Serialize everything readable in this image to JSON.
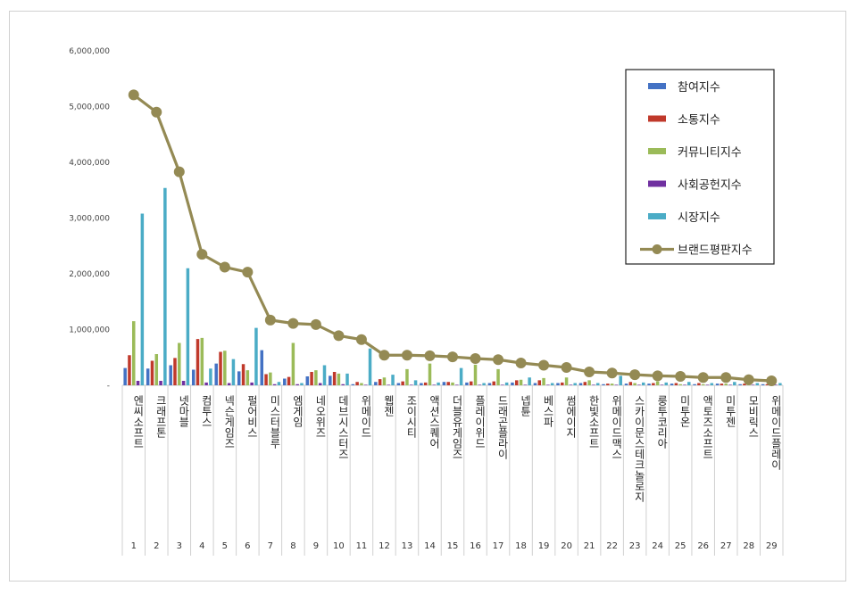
{
  "chart_data": {
    "type": "bar",
    "ylim": [
      0,
      6000000
    ],
    "y_ticks": [
      "-",
      "1,000,000",
      "2,000,000",
      "3,000,000",
      "4,000,000",
      "5,000,000",
      "6,000,000"
    ],
    "grid": false,
    "legend_position": "right",
    "category_numbers": [
      "1",
      "2",
      "3",
      "4",
      "5",
      "6",
      "7",
      "8",
      "9",
      "10",
      "11",
      "12",
      "13",
      "14",
      "15",
      "16",
      "17",
      "18",
      "19",
      "20",
      "21",
      "22",
      "23",
      "24",
      "25",
      "26",
      "27",
      "28",
      "29"
    ],
    "categories": [
      "엔씨소프트",
      "크래프톤",
      "넷마블",
      "컴투스",
      "넥슨게임즈",
      "펄어비스",
      "미스터블루",
      "엠게임",
      "네오위즈",
      "데브시스터즈",
      "위메이드",
      "웹젠",
      "조이시티",
      "액션스퀘어",
      "더블유게임즈",
      "플레이위드",
      "드래곤플라이",
      "넵튠",
      "베스파",
      "썸에이지",
      "한빛소프트",
      "위메이드맥스",
      "스카이문스테크놀로지",
      "룽투코리아",
      "미투온",
      "액토즈소프트",
      "미투젠",
      "모비릭스",
      "위메이드플레이"
    ],
    "series": [
      {
        "name": "참여지수",
        "kind": "bar",
        "color": "#4472c4",
        "values": [
          310000,
          300000,
          360000,
          280000,
          390000,
          250000,
          630000,
          120000,
          160000,
          170000,
          20000,
          60000,
          40000,
          40000,
          60000,
          50000,
          40000,
          50000,
          40000,
          40000,
          40000,
          20000,
          30000,
          30000,
          30000,
          20000,
          30000,
          20000,
          20000
        ]
      },
      {
        "name": "소통지수",
        "kind": "bar",
        "color": "#c0392b",
        "values": [
          540000,
          440000,
          490000,
          830000,
          600000,
          380000,
          200000,
          150000,
          240000,
          240000,
          60000,
          110000,
          70000,
          50000,
          60000,
          70000,
          70000,
          90000,
          90000,
          50000,
          60000,
          30000,
          60000,
          40000,
          40000,
          40000,
          30000,
          30000,
          20000
        ]
      },
      {
        "name": "커뮤니티지수",
        "kind": "bar",
        "color": "#9bbb59",
        "values": [
          1150000,
          560000,
          760000,
          850000,
          620000,
          270000,
          230000,
          760000,
          270000,
          210000,
          40000,
          140000,
          290000,
          390000,
          50000,
          370000,
          290000,
          100000,
          130000,
          140000,
          90000,
          30000,
          40000,
          70000,
          20000,
          20000,
          30000,
          20000,
          20000
        ]
      },
      {
        "name": "사회공헌지수",
        "kind": "bar",
        "color": "#7030a0",
        "values": [
          80000,
          80000,
          80000,
          50000,
          40000,
          50000,
          20000,
          20000,
          40000,
          20000,
          10000,
          10000,
          10000,
          10000,
          10000,
          10000,
          10000,
          10000,
          10000,
          10000,
          10000,
          10000,
          10000,
          10000,
          10000,
          10000,
          10000,
          10000,
          10000
        ]
      },
      {
        "name": "시장지수",
        "kind": "bar",
        "color": "#4bacc6",
        "values": [
          3080000,
          3540000,
          2100000,
          300000,
          470000,
          1030000,
          60000,
          40000,
          360000,
          210000,
          660000,
          190000,
          90000,
          50000,
          310000,
          40000,
          50000,
          140000,
          40000,
          40000,
          40000,
          170000,
          50000,
          50000,
          60000,
          40000,
          60000,
          40000,
          40000
        ]
      },
      {
        "name": "브랜드평판지수",
        "kind": "line",
        "color": "#948a54",
        "values": [
          5210000,
          4900000,
          3830000,
          2350000,
          2120000,
          2030000,
          1170000,
          1110000,
          1090000,
          890000,
          820000,
          540000,
          540000,
          530000,
          510000,
          480000,
          460000,
          400000,
          360000,
          320000,
          240000,
          220000,
          190000,
          170000,
          160000,
          140000,
          140000,
          100000,
          80000
        ]
      }
    ]
  }
}
